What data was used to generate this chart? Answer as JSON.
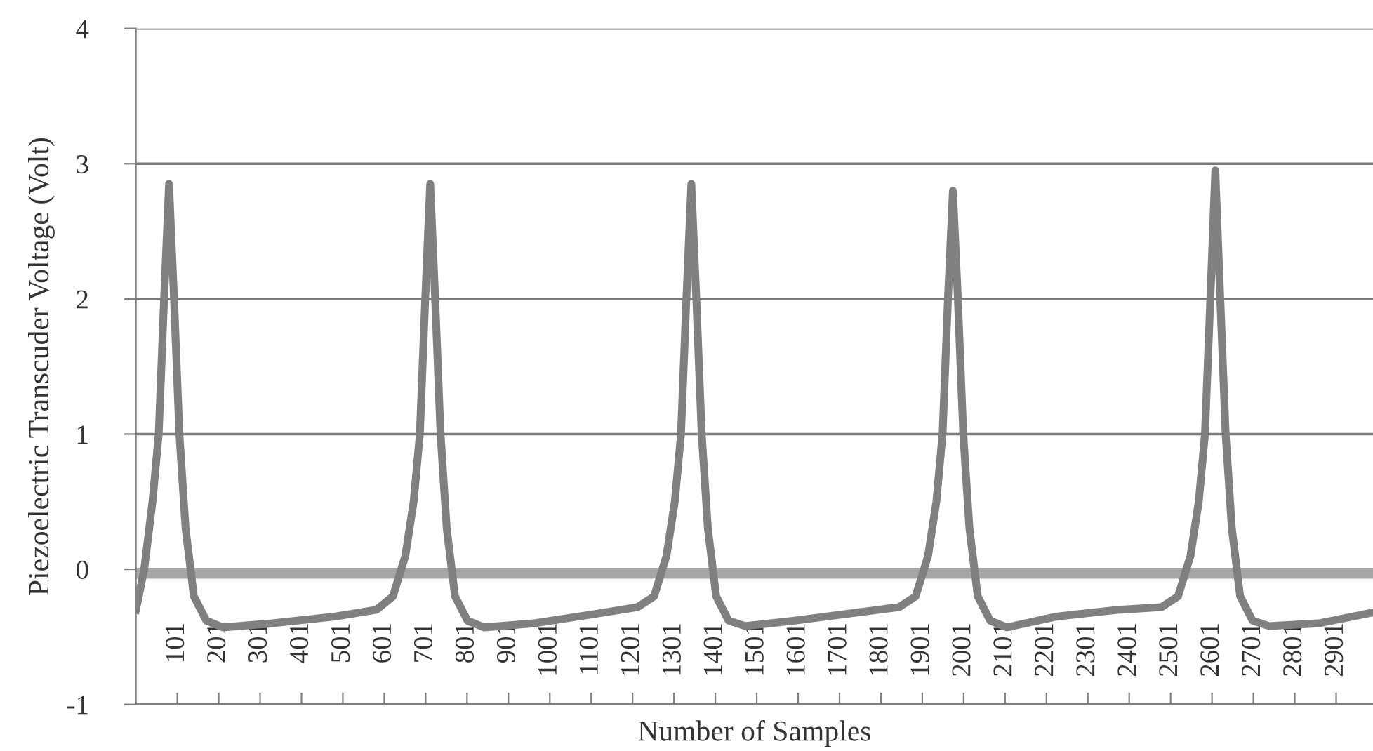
{
  "chart_data": {
    "type": "line",
    "xlabel": "Number of Samples",
    "ylabel": "Piezoelectric Transcuder Voltage (Volt)",
    "xlim": [
      1,
      2990
    ],
    "ylim": [
      -1,
      4
    ],
    "yticks": [
      -1,
      0,
      1,
      2,
      3,
      4
    ],
    "xticks": [
      101,
      201,
      301,
      401,
      501,
      601,
      701,
      801,
      901,
      1001,
      1101,
      1201,
      1301,
      1401,
      1501,
      1601,
      1701,
      1801,
      1901,
      2001,
      2101,
      2201,
      2301,
      2401,
      2501,
      2601,
      2701,
      2801,
      2901
    ],
    "grid": "y",
    "legend": false,
    "marker": "none",
    "line_style": "solid",
    "series": [
      {
        "color": "#808080",
        "x": [
          1,
          21,
          41,
          56,
          69,
          81,
          93,
          106,
          121,
          141,
          171,
          211,
          331,
          481,
          582,
          622,
          652,
          672,
          687,
          700,
          712,
          724,
          737,
          752,
          772,
          802,
          842,
          962,
          1112,
          1213,
          1253,
          1283,
          1303,
          1318,
          1331,
          1343,
          1355,
          1368,
          1383,
          1403,
          1433,
          1473,
          1593,
          1743,
          1845,
          1885,
          1915,
          1935,
          1950,
          1963,
          1975,
          1987,
          2000,
          2015,
          2035,
          2065,
          2105,
          2225,
          2375,
          2479,
          2519,
          2549,
          2569,
          2584,
          2597,
          2609,
          2621,
          2634,
          2649,
          2669,
          2699,
          2739,
          2859,
          2990
        ],
        "values": [
          -0.3,
          0.0,
          0.5,
          1.0,
          2.0,
          2.85,
          2.0,
          1.0,
          0.3,
          -0.2,
          -0.38,
          -0.43,
          -0.4,
          -0.35,
          -0.3,
          -0.2,
          0.1,
          0.5,
          1.0,
          2.0,
          2.85,
          2.0,
          1.0,
          0.3,
          -0.2,
          -0.38,
          -0.43,
          -0.4,
          -0.33,
          -0.28,
          -0.2,
          0.1,
          0.5,
          1.0,
          2.0,
          2.85,
          2.0,
          1.0,
          0.3,
          -0.2,
          -0.38,
          -0.42,
          -0.38,
          -0.32,
          -0.28,
          -0.2,
          0.1,
          0.5,
          1.0,
          2.0,
          2.8,
          2.0,
          1.0,
          0.3,
          -0.2,
          -0.38,
          -0.43,
          -0.35,
          -0.3,
          -0.28,
          -0.2,
          0.1,
          0.5,
          1.0,
          2.0,
          2.95,
          2.0,
          1.0,
          0.3,
          -0.2,
          -0.38,
          -0.42,
          -0.4,
          -0.32
        ]
      },
      {
        "color": "#a6a6a6",
        "x": [
          1,
          2990
        ],
        "values": [
          -0.03,
          -0.03
        ]
      }
    ]
  }
}
